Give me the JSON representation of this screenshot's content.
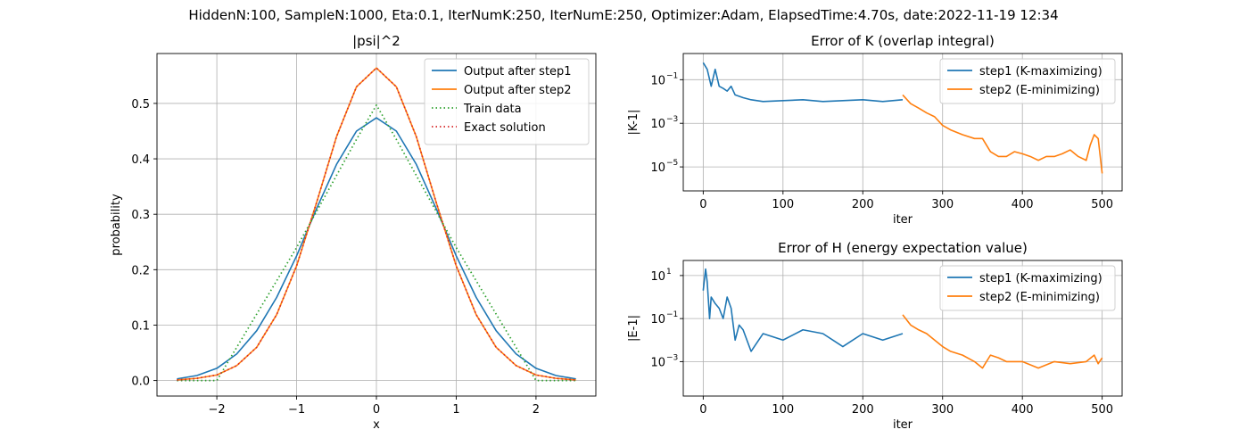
{
  "suptitle": "HiddenN:100, SampleN:1000, Eta:0.1, IterNumK:250, IterNumE:250, Optimizer:Adam, ElapsedTime:4.70s, date:2022-11-19  12:34",
  "colors": {
    "blue": "#1f77b4",
    "orange": "#ff7f0e",
    "green": "#2ca02c",
    "red": "#d62728",
    "grid": "#b0b0b0"
  },
  "chart_data": [
    {
      "id": "psi",
      "type": "line",
      "title": "|psi|^2",
      "xlabel": "x",
      "ylabel": "probability",
      "xlim": [
        -2.75,
        2.75
      ],
      "ylim": [
        -0.028,
        0.59
      ],
      "xticks": [
        -2,
        -1,
        0,
        1,
        2
      ],
      "xtick_labels": [
        "−2",
        "−1",
        "0",
        "1",
        "2"
      ],
      "yticks": [
        0.0,
        0.1,
        0.2,
        0.3,
        0.4,
        0.5
      ],
      "ytick_labels": [
        "0.0",
        "0.1",
        "0.2",
        "0.3",
        "0.4",
        "0.5"
      ],
      "grid": true,
      "legend_position": "upper right",
      "x": [
        -2.5,
        -2.25,
        -2.0,
        -1.75,
        -1.5,
        -1.25,
        -1.0,
        -0.75,
        -0.5,
        -0.25,
        0.0,
        0.25,
        0.5,
        0.75,
        1.0,
        1.25,
        1.5,
        1.75,
        2.0,
        2.25,
        2.5
      ],
      "series": [
        {
          "name": "Output after step1",
          "color": "#1f77b4",
          "style": "solid",
          "values": [
            0.003,
            0.009,
            0.022,
            0.048,
            0.09,
            0.15,
            0.225,
            0.31,
            0.39,
            0.45,
            0.474,
            0.45,
            0.39,
            0.31,
            0.225,
            0.15,
            0.09,
            0.048,
            0.022,
            0.009,
            0.003
          ]
        },
        {
          "name": "Output after step2",
          "color": "#ff7f0e",
          "style": "solid",
          "values": [
            0.001,
            0.004,
            0.01,
            0.027,
            0.06,
            0.119,
            0.207,
            0.321,
            0.44,
            0.53,
            0.564,
            0.53,
            0.44,
            0.321,
            0.207,
            0.119,
            0.06,
            0.027,
            0.01,
            0.004,
            0.001
          ]
        },
        {
          "name": "Train data",
          "color": "#2ca02c",
          "style": "dotted",
          "values": [
            0.0,
            0.0,
            0.0,
            0.06,
            0.12,
            0.18,
            0.24,
            0.305,
            0.37,
            0.435,
            0.497,
            0.435,
            0.37,
            0.305,
            0.24,
            0.18,
            0.12,
            0.06,
            0.0,
            0.0,
            0.0
          ]
        },
        {
          "name": "Exact solution",
          "color": "#d62728",
          "style": "dotted",
          "values": [
            0.001,
            0.004,
            0.01,
            0.027,
            0.06,
            0.119,
            0.207,
            0.321,
            0.44,
            0.53,
            0.564,
            0.53,
            0.44,
            0.321,
            0.207,
            0.119,
            0.06,
            0.027,
            0.01,
            0.004,
            0.001
          ]
        }
      ]
    },
    {
      "id": "errK",
      "type": "line",
      "title": "Error of K (overlap integral)",
      "xlabel": "iter",
      "ylabel": "|K-1|",
      "yscale": "log",
      "xlim": [
        -25,
        525
      ],
      "ylim_log10": [
        -6.1,
        0.2
      ],
      "xticks": [
        0,
        100,
        200,
        300,
        400,
        500
      ],
      "xtick_labels": [
        "0",
        "100",
        "200",
        "300",
        "400",
        "500"
      ],
      "yticks": [
        -5,
        -3,
        -1
      ],
      "ytick_labels": [
        "10",
        "10",
        "10"
      ],
      "ytick_exponents": [
        "−5",
        "−3",
        "−1"
      ],
      "grid": true,
      "legend_position": "upper right",
      "series": [
        {
          "name": "step1 (K-maximizing)",
          "color": "#1f77b4",
          "x": [
            0,
            5,
            10,
            15,
            20,
            25,
            30,
            35,
            40,
            50,
            60,
            75,
            100,
            125,
            150,
            175,
            200,
            225,
            250
          ],
          "values": [
            0.6,
            0.3,
            0.05,
            0.3,
            0.05,
            0.04,
            0.03,
            0.05,
            0.02,
            0.015,
            0.012,
            0.01,
            0.011,
            0.012,
            0.01,
            0.011,
            0.012,
            0.01,
            0.012
          ]
        },
        {
          "name": "step2 (E-minimizing)",
          "color": "#ff7f0e",
          "x": [
            250,
            260,
            270,
            280,
            290,
            300,
            310,
            325,
            340,
            350,
            360,
            370,
            380,
            390,
            400,
            410,
            420,
            430,
            440,
            450,
            460,
            470,
            480,
            485,
            490,
            495,
            500
          ],
          "values": [
            0.02,
            0.008,
            0.005,
            0.003,
            0.002,
            0.0008,
            0.0005,
            0.0003,
            0.0002,
            0.0002,
            5e-05,
            3e-05,
            3e-05,
            5e-05,
            4e-05,
            3e-05,
            2e-05,
            3e-05,
            3e-05,
            4e-05,
            6e-05,
            3e-05,
            2e-05,
            0.0001,
            0.0003,
            0.0002,
            5e-06
          ]
        }
      ]
    },
    {
      "id": "errH",
      "type": "line",
      "title": "Error of H (energy expectation value)",
      "xlabel": "iter",
      "ylabel": "|E-1|",
      "yscale": "log",
      "xlim": [
        -25,
        525
      ],
      "ylim_log10": [
        -4.6,
        1.7
      ],
      "xticks": [
        0,
        100,
        200,
        300,
        400,
        500
      ],
      "xtick_labels": [
        "0",
        "100",
        "200",
        "300",
        "400",
        "500"
      ],
      "yticks": [
        -3,
        -1,
        1
      ],
      "ytick_labels": [
        "10",
        "10",
        "10"
      ],
      "ytick_exponents": [
        "−3",
        "−1",
        "1"
      ],
      "grid": true,
      "legend_position": "upper right",
      "series": [
        {
          "name": "step1 (K-maximizing)",
          "color": "#1f77b4",
          "x": [
            0,
            3,
            5,
            8,
            10,
            15,
            20,
            25,
            30,
            35,
            40,
            45,
            50,
            60,
            75,
            100,
            125,
            150,
            175,
            200,
            225,
            250
          ],
          "values": [
            2.0,
            20.0,
            5.0,
            0.1,
            1.0,
            0.5,
            0.3,
            0.1,
            1.0,
            0.3,
            0.01,
            0.05,
            0.03,
            0.003,
            0.02,
            0.01,
            0.03,
            0.02,
            0.005,
            0.02,
            0.01,
            0.02
          ]
        },
        {
          "name": "step2 (E-minimizing)",
          "color": "#ff7f0e",
          "x": [
            250,
            260,
            270,
            280,
            290,
            300,
            310,
            325,
            340,
            350,
            360,
            370,
            380,
            400,
            420,
            440,
            460,
            480,
            490,
            495,
            500
          ],
          "values": [
            0.15,
            0.05,
            0.03,
            0.02,
            0.01,
            0.005,
            0.003,
            0.002,
            0.001,
            0.0005,
            0.002,
            0.0015,
            0.001,
            0.001,
            0.0005,
            0.001,
            0.0008,
            0.001,
            0.002,
            0.0008,
            0.0015
          ]
        }
      ]
    }
  ]
}
